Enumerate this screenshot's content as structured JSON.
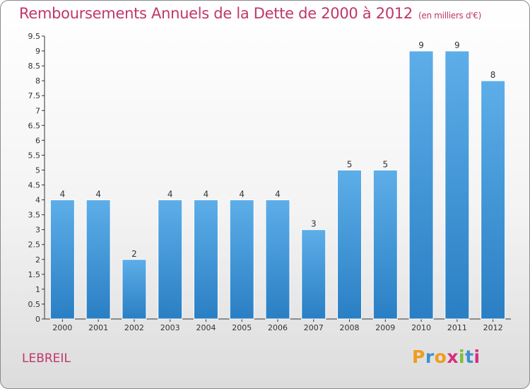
{
  "header": {
    "title": "Remboursements Annuels de la Dette de 2000 à 2012",
    "unit": "(en milliers d'€)"
  },
  "footer": {
    "commune": "LEBREIL",
    "logo_text": "Proxiti"
  },
  "colors": {
    "accent": "#c0366b",
    "bar_top": "#5daee8",
    "bar_bottom": "#2a7fc4"
  },
  "chart_data": {
    "type": "bar",
    "title": "Remboursements Annuels de la Dette de 2000 à 2012",
    "subtitle": "(en milliers d'€)",
    "xlabel": "",
    "ylabel": "",
    "categories": [
      "2000",
      "2001",
      "2002",
      "2003",
      "2004",
      "2005",
      "2006",
      "2007",
      "2008",
      "2009",
      "2010",
      "2011",
      "2012"
    ],
    "values": [
      4,
      4,
      2,
      4,
      4,
      4,
      4,
      3,
      5,
      5,
      9,
      9,
      8
    ],
    "data_labels": [
      "4",
      "4",
      "2",
      "4",
      "4",
      "4",
      "4",
      "3",
      "5",
      "5",
      "9",
      "9",
      "8"
    ],
    "ylim": [
      0,
      9.5
    ],
    "yticks": [
      "0",
      "0.5",
      "1",
      "1.5",
      "2",
      "2.5",
      "3",
      "3.5",
      "4",
      "4.5",
      "5",
      "5.5",
      "6",
      "6.5",
      "7",
      "7.5",
      "8",
      "8.5",
      "9",
      "9.5"
    ],
    "grid": false,
    "legend": "none"
  }
}
